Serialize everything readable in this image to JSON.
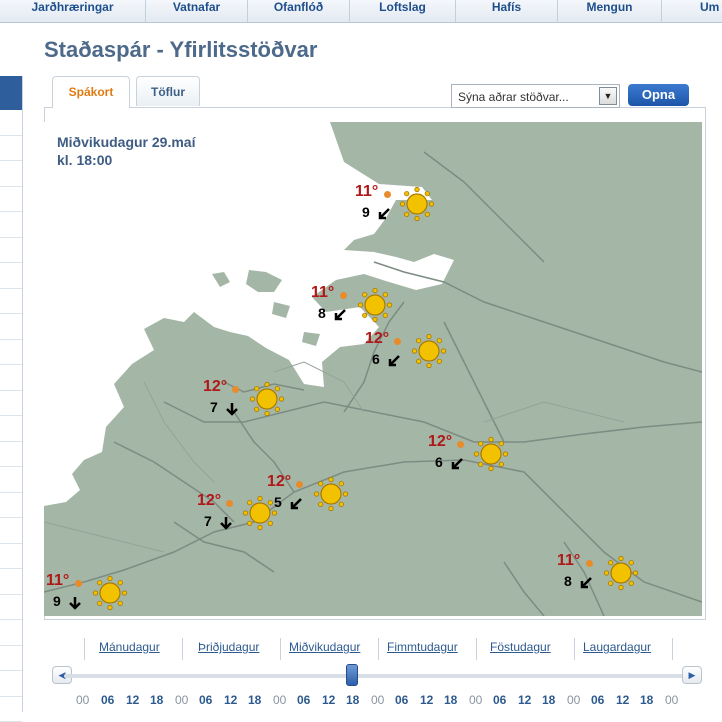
{
  "nav": [
    "Jarðhræringar",
    "Vatnafar",
    "Ofanflóð",
    "Loftslag",
    "Hafís",
    "Mengun",
    "Um"
  ],
  "page_title": "Staðaspár - Yfirlitsstöðvar",
  "tabs": [
    {
      "label": "Spákort",
      "active": true
    },
    {
      "label": "Töflur",
      "active": false
    }
  ],
  "station_select": {
    "value": "Sýna aðrar stöðvar..."
  },
  "open_button": "Opna",
  "map": {
    "date_line1": "Miðvikudagur 29.maí",
    "date_line2": "kl. 18:00",
    "stations": [
      {
        "temp": "11°",
        "wind": "9",
        "arrow": "down-left",
        "icon": "sun-icon"
      },
      {
        "temp": "11°",
        "wind": "8",
        "arrow": "down-left",
        "icon": "sun-icon"
      },
      {
        "temp": "12°",
        "wind": "6",
        "arrow": "down-left",
        "icon": "sun-icon"
      },
      {
        "temp": "12°",
        "wind": "7",
        "arrow": "down",
        "icon": "sun-icon"
      },
      {
        "temp": "12°",
        "wind": "6",
        "arrow": "down-left",
        "icon": "sun-icon"
      },
      {
        "temp": "12°",
        "wind": "5",
        "arrow": "down-left",
        "icon": "sun-icon"
      },
      {
        "temp": "12°",
        "wind": "7",
        "arrow": "down",
        "icon": "sun-icon"
      },
      {
        "temp": "11°",
        "wind": "8",
        "arrow": "down-left",
        "icon": "sun-icon"
      },
      {
        "temp": "11°",
        "wind": "9",
        "arrow": "down",
        "icon": "sun-icon"
      }
    ]
  },
  "timeline": {
    "days": [
      "Mánudagur",
      "Þriðjudagur",
      "Miðvikudagur",
      "Fimmtudagur",
      "Föstudagur",
      "Laugardagur"
    ],
    "hours": [
      "00",
      "06",
      "12",
      "18",
      "00",
      "06",
      "12",
      "18",
      "00",
      "06",
      "12",
      "18",
      "00",
      "06",
      "12",
      "18",
      "00",
      "06",
      "12",
      "18",
      "00",
      "06",
      "12",
      "18",
      "00"
    ],
    "selected_day": "Miðvikudagur",
    "selected_hour": "18"
  },
  "colors": {
    "land": "#a4b6a6",
    "road": "#7d8c82",
    "temp": "#b01818",
    "sun": "#f2c200",
    "accent": "#2d5a8e"
  }
}
